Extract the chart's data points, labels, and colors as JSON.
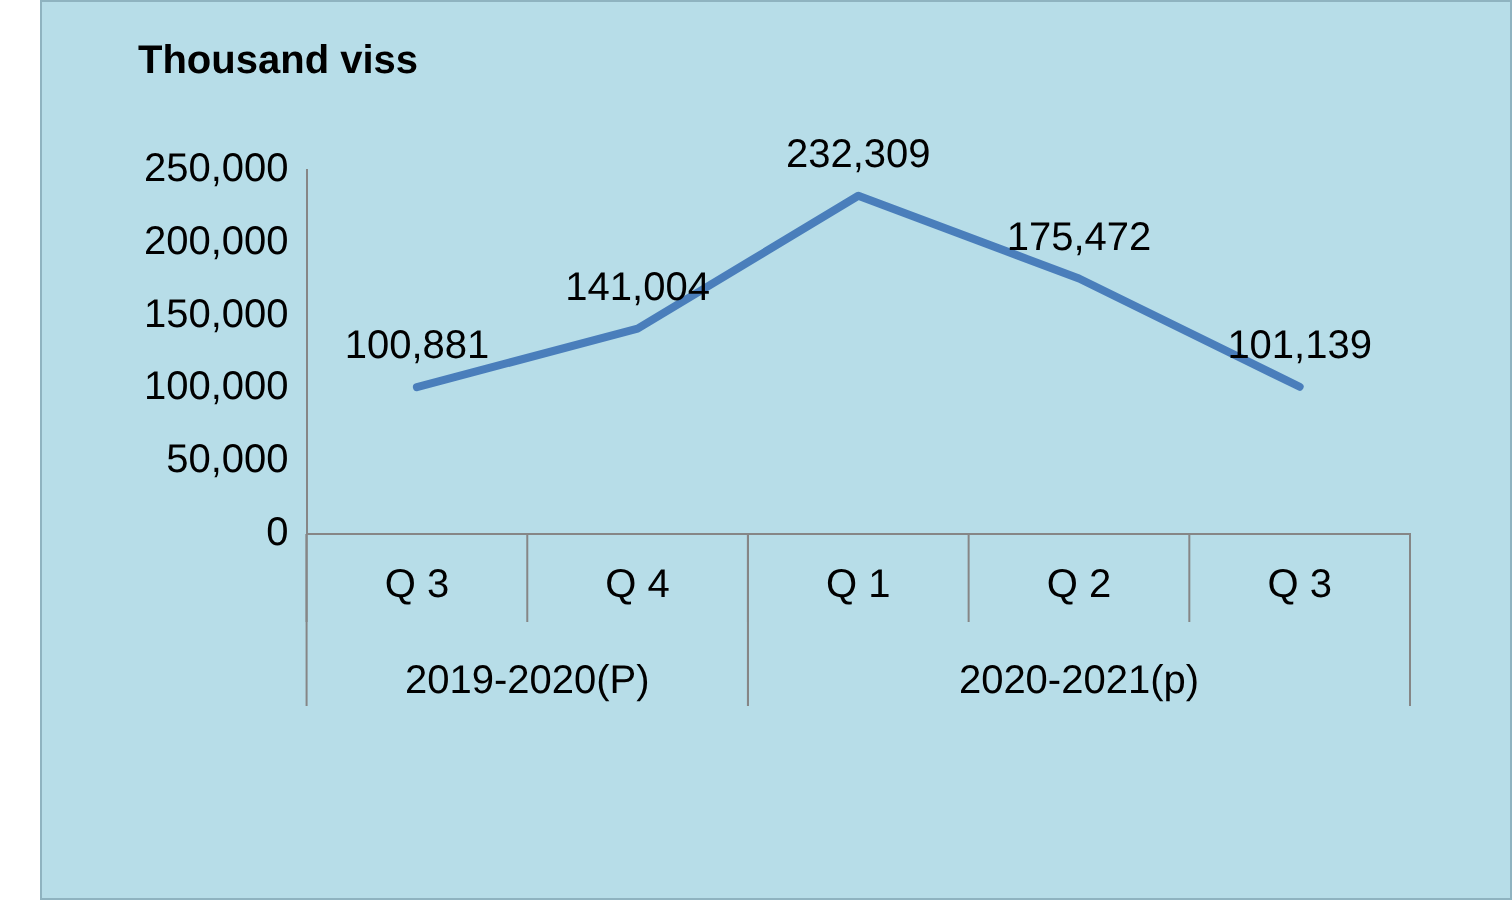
{
  "chart_data": {
    "type": "line",
    "title": "Thousand viss",
    "categories": [
      "Q 3",
      "Q 4",
      "Q 1",
      "Q 2",
      "Q 3"
    ],
    "values": [
      100881,
      141004,
      232309,
      175472,
      101139
    ],
    "value_labels": [
      "100,881",
      "141,004",
      "232,309",
      "175,472",
      "101,139"
    ],
    "color": "#4a7ebb",
    "ylim": [
      0,
      250000
    ],
    "yticks": [
      {
        "value": 0,
        "label": "0"
      },
      {
        "value": 50000,
        "label": "50,000"
      },
      {
        "value": 100000,
        "label": "100,000"
      },
      {
        "value": 150000,
        "label": "150,000"
      },
      {
        "value": 200000,
        "label": "200,000"
      },
      {
        "value": 250000,
        "label": "250,000"
      }
    ],
    "annotations": [
      "2019-2020(P)",
      "2020-2021(p)"
    ],
    "grid": false,
    "legend": false,
    "marker": "none",
    "line_style": "solid"
  }
}
